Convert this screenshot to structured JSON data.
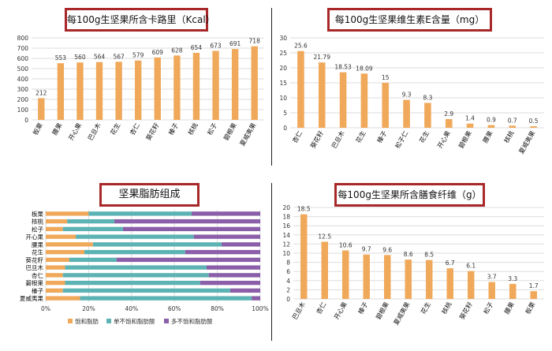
{
  "chart_data": [
    {
      "type": "bar",
      "title": "每100g生坚果所含卡路里（Kcal）",
      "categories": [
        "板栗",
        "腰果",
        "开心果",
        "巴旦木",
        "花生",
        "杏仁",
        "葵花籽",
        "榛子",
        "核桃",
        "松子",
        "碧根果",
        "夏威夷果"
      ],
      "values": [
        212,
        553,
        560,
        564,
        567,
        579,
        609,
        628,
        654,
        673,
        691,
        718
      ],
      "ylim": [
        0,
        800
      ],
      "yticks": [
        0,
        100,
        200,
        300,
        400,
        500,
        600,
        700,
        800
      ],
      "grid": true,
      "color": "#f0a95a"
    },
    {
      "type": "bar",
      "title": "每100g生坚果维生素E含量（mg）",
      "categories": [
        "杏仁",
        "葵花籽",
        "巴旦木",
        "花生",
        "榛子",
        "松子仁",
        "花生",
        "开心果",
        "碧根果",
        "腰果",
        "核桃",
        "夏威夷果"
      ],
      "values": [
        25.6,
        21.79,
        18.53,
        18.09,
        15,
        9.3,
        8.3,
        2.9,
        1.4,
        0.9,
        0.7,
        0.5
      ],
      "value_labels": [
        "25.6",
        "21.79",
        "18.53",
        "18.09",
        "15",
        "9.3",
        "8.3",
        "2.9",
        "1.4",
        "0.9",
        "0.7",
        "0.5"
      ],
      "ylim": [
        0,
        30
      ],
      "yticks": [
        0,
        5,
        10,
        15,
        20,
        25,
        30
      ],
      "grid": true,
      "color": "#f0a95a"
    },
    {
      "type": "bar",
      "stacked": "percent",
      "orientation": "horizontal",
      "title": "坚果脂肪组成",
      "categories": [
        "板栗",
        "核桃",
        "松子",
        "开心果",
        "腰果",
        "花生",
        "葵花籽",
        "巴旦木",
        "杏仁",
        "碧根果",
        "榛子",
        "夏威夷果"
      ],
      "series": [
        {
          "name": "饱和脂肪",
          "color": "#f0a95a",
          "values": [
            20,
            10,
            8,
            14,
            22,
            18,
            11,
            9,
            8,
            9,
            8,
            16
          ]
        },
        {
          "name": "单不饱和脂肪酸",
          "color": "#5db3b3",
          "values": [
            48,
            22,
            28,
            55,
            60,
            47,
            22,
            66,
            68,
            63,
            78,
            80
          ]
        },
        {
          "name": "多不饱和脂肪酸",
          "color": "#8a5ea8",
          "values": [
            32,
            68,
            64,
            31,
            18,
            35,
            67,
            25,
            24,
            28,
            14,
            4
          ]
        }
      ],
      "xticks": [
        "0%",
        "20%",
        "40%",
        "60%",
        "80%",
        "100%"
      ],
      "grid": true,
      "legend": "bottom"
    },
    {
      "type": "bar",
      "title": "每100g生坚果所含膳食纤维（g）",
      "categories": [
        "巴旦木",
        "杏仁",
        "开心果",
        "榛子",
        "碧根果",
        "夏威夷果",
        "花生",
        "核桃",
        "葵花籽",
        "松子",
        "腰果",
        "板栗"
      ],
      "values": [
        18.5,
        12.5,
        10.6,
        9.7,
        9.6,
        8.6,
        8.5,
        6.7,
        6.1,
        3.7,
        3.3,
        1.7
      ],
      "value_labels": [
        "18.5",
        "12.5",
        "10.6",
        "9.7",
        "9.6",
        "8.6",
        "8.5",
        "6.7",
        "6.1",
        "3.7",
        "3.3",
        "1.7"
      ],
      "ylim": [
        0,
        20
      ],
      "yticks": [
        0,
        2,
        4,
        6,
        8,
        10,
        12,
        14,
        16,
        18,
        20
      ],
      "grid": true,
      "color": "#f0a95a"
    }
  ]
}
